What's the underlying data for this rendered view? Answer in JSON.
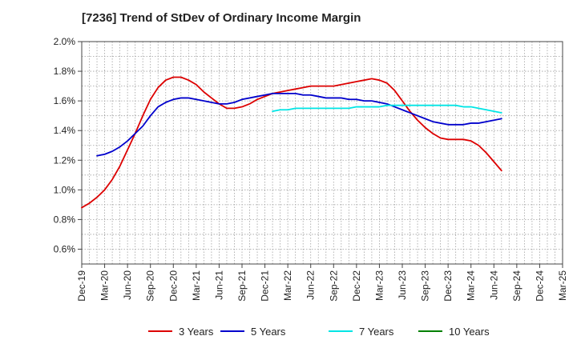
{
  "chart_data": {
    "type": "line",
    "title": "[7236]  Trend of StDev of Ordinary Income Margin",
    "xlabel": "",
    "ylabel": "",
    "x_tick_labels": [
      "Dec-19",
      "Mar-20",
      "Jun-20",
      "Sep-20",
      "Dec-20",
      "Mar-21",
      "Jun-21",
      "Sep-21",
      "Dec-21",
      "Mar-22",
      "Jun-22",
      "Sep-22",
      "Dec-22",
      "Mar-23",
      "Jun-23",
      "Sep-23",
      "Dec-23",
      "Mar-24",
      "Jun-24",
      "Sep-24",
      "Dec-24",
      "Mar-25"
    ],
    "y_tick_labels": [
      "0.6%",
      "0.8%",
      "1.0%",
      "1.2%",
      "1.4%",
      "1.6%",
      "1.8%",
      "2.0%"
    ],
    "y_ticks": [
      0.6,
      0.8,
      1.0,
      1.2,
      1.4,
      1.6,
      1.8,
      2.0
    ],
    "ylim": [
      0.5,
      2.0
    ],
    "grid": true,
    "legend_position": "bottom",
    "x_unit": "month index from Dec-19",
    "series": [
      {
        "name": "3 Years",
        "color": "#dd0000",
        "points": [
          [
            0,
            0.88
          ],
          [
            1,
            0.91
          ],
          [
            2,
            0.95
          ],
          [
            3,
            1.0
          ],
          [
            4,
            1.07
          ],
          [
            5,
            1.16
          ],
          [
            6,
            1.27
          ],
          [
            7,
            1.38
          ],
          [
            8,
            1.5
          ],
          [
            9,
            1.61
          ],
          [
            10,
            1.69
          ],
          [
            11,
            1.74
          ],
          [
            12,
            1.76
          ],
          [
            13,
            1.76
          ],
          [
            14,
            1.74
          ],
          [
            15,
            1.71
          ],
          [
            16,
            1.66
          ],
          [
            17,
            1.62
          ],
          [
            18,
            1.58
          ],
          [
            19,
            1.55
          ],
          [
            20,
            1.55
          ],
          [
            21,
            1.56
          ],
          [
            22,
            1.58
          ],
          [
            23,
            1.61
          ],
          [
            24,
            1.63
          ],
          [
            25,
            1.65
          ],
          [
            26,
            1.66
          ],
          [
            27,
            1.67
          ],
          [
            28,
            1.68
          ],
          [
            29,
            1.69
          ],
          [
            30,
            1.7
          ],
          [
            31,
            1.7
          ],
          [
            32,
            1.7
          ],
          [
            33,
            1.7
          ],
          [
            34,
            1.71
          ],
          [
            35,
            1.72
          ],
          [
            36,
            1.73
          ],
          [
            37,
            1.74
          ],
          [
            38,
            1.75
          ],
          [
            39,
            1.74
          ],
          [
            40,
            1.72
          ],
          [
            41,
            1.67
          ],
          [
            42,
            1.6
          ],
          [
            43,
            1.53
          ],
          [
            44,
            1.47
          ],
          [
            45,
            1.42
          ],
          [
            46,
            1.38
          ],
          [
            47,
            1.35
          ],
          [
            48,
            1.34
          ],
          [
            49,
            1.34
          ],
          [
            50,
            1.34
          ],
          [
            51,
            1.33
          ],
          [
            52,
            1.3
          ],
          [
            53,
            1.25
          ],
          [
            54,
            1.19
          ],
          [
            55,
            1.13
          ]
        ]
      },
      {
        "name": "5 Years",
        "color": "#0000cc",
        "points": [
          [
            2,
            1.23
          ],
          [
            3,
            1.24
          ],
          [
            4,
            1.26
          ],
          [
            5,
            1.29
          ],
          [
            6,
            1.33
          ],
          [
            7,
            1.38
          ],
          [
            8,
            1.43
          ],
          [
            9,
            1.5
          ],
          [
            10,
            1.56
          ],
          [
            11,
            1.59
          ],
          [
            12,
            1.61
          ],
          [
            13,
            1.62
          ],
          [
            14,
            1.62
          ],
          [
            15,
            1.61
          ],
          [
            16,
            1.6
          ],
          [
            17,
            1.59
          ],
          [
            18,
            1.58
          ],
          [
            19,
            1.58
          ],
          [
            20,
            1.59
          ],
          [
            21,
            1.61
          ],
          [
            22,
            1.62
          ],
          [
            23,
            1.63
          ],
          [
            24,
            1.64
          ],
          [
            25,
            1.65
          ],
          [
            26,
            1.65
          ],
          [
            27,
            1.65
          ],
          [
            28,
            1.65
          ],
          [
            29,
            1.64
          ],
          [
            30,
            1.64
          ],
          [
            31,
            1.63
          ],
          [
            32,
            1.62
          ],
          [
            33,
            1.62
          ],
          [
            34,
            1.62
          ],
          [
            35,
            1.61
          ],
          [
            36,
            1.61
          ],
          [
            37,
            1.6
          ],
          [
            38,
            1.6
          ],
          [
            39,
            1.59
          ],
          [
            40,
            1.58
          ],
          [
            41,
            1.56
          ],
          [
            42,
            1.54
          ],
          [
            43,
            1.52
          ],
          [
            44,
            1.5
          ],
          [
            45,
            1.48
          ],
          [
            46,
            1.46
          ],
          [
            47,
            1.45
          ],
          [
            48,
            1.44
          ],
          [
            49,
            1.44
          ],
          [
            50,
            1.44
          ],
          [
            51,
            1.45
          ],
          [
            52,
            1.45
          ],
          [
            53,
            1.46
          ],
          [
            54,
            1.47
          ],
          [
            55,
            1.48
          ]
        ]
      },
      {
        "name": "7 Years",
        "color": "#00e5e5",
        "points": [
          [
            25,
            1.53
          ],
          [
            26,
            1.54
          ],
          [
            27,
            1.54
          ],
          [
            28,
            1.55
          ],
          [
            29,
            1.55
          ],
          [
            30,
            1.55
          ],
          [
            31,
            1.55
          ],
          [
            32,
            1.55
          ],
          [
            33,
            1.55
          ],
          [
            34,
            1.55
          ],
          [
            35,
            1.55
          ],
          [
            36,
            1.56
          ],
          [
            37,
            1.56
          ],
          [
            38,
            1.56
          ],
          [
            39,
            1.56
          ],
          [
            40,
            1.57
          ],
          [
            41,
            1.57
          ],
          [
            42,
            1.57
          ],
          [
            43,
            1.57
          ],
          [
            44,
            1.57
          ],
          [
            45,
            1.57
          ],
          [
            46,
            1.57
          ],
          [
            47,
            1.57
          ],
          [
            48,
            1.57
          ],
          [
            49,
            1.57
          ],
          [
            50,
            1.56
          ],
          [
            51,
            1.56
          ],
          [
            52,
            1.55
          ],
          [
            53,
            1.54
          ],
          [
            54,
            1.53
          ],
          [
            55,
            1.52
          ]
        ]
      },
      {
        "name": "10 Years",
        "color": "#008000",
        "points": []
      }
    ]
  }
}
